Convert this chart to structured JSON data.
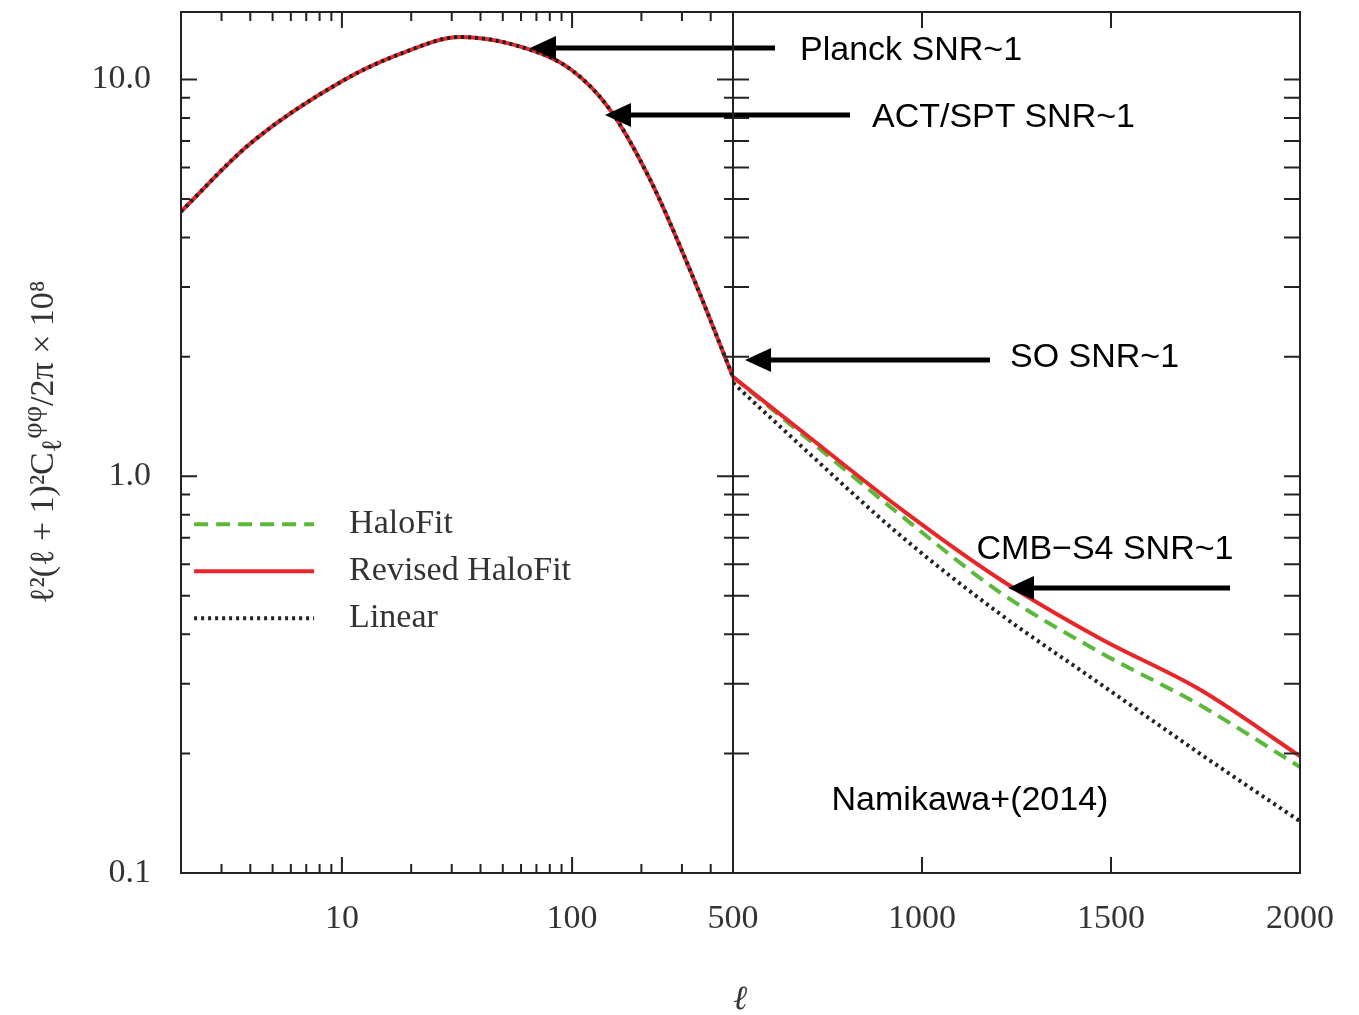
{
  "chart_data": [
    {
      "type": "line",
      "xlabel": "ℓ",
      "ylabel": "ℓ²(ℓ + 1)²C$_{ℓ}$$^{φφ}$/2π × 10⁸",
      "log": "xy",
      "grid": false,
      "legend": "left",
      "xlim": [
        2,
        500
      ],
      "xticks": [
        {
          "value": 3,
          "label": null
        },
        {
          "value": 4,
          "label": null
        },
        {
          "value": 5,
          "label": null
        },
        {
          "value": 6,
          "label": null
        },
        {
          "value": 7,
          "label": null
        },
        {
          "value": 8,
          "label": null
        },
        {
          "value": 9,
          "label": null
        },
        10,
        {
          "value": 20,
          "label": null
        },
        {
          "value": 30,
          "label": null
        },
        {
          "value": 40,
          "label": null
        },
        {
          "value": 50,
          "label": null
        },
        {
          "value": 60,
          "label": null
        },
        {
          "value": 70,
          "label": null
        },
        {
          "value": 80,
          "label": null
        },
        {
          "value": 90,
          "label": null
        },
        100,
        {
          "value": 200,
          "label": null
        },
        {
          "value": 300,
          "label": null
        },
        {
          "value": 400,
          "label": null
        }
      ],
      "ylim": [
        0.1,
        14.8
      ],
      "yticks": [
        0.1,
        {
          "value": 0.2,
          "label": null
        },
        {
          "value": 0.3,
          "label": null
        },
        {
          "value": 0.4,
          "label": null
        },
        {
          "value": 0.5,
          "label": null
        },
        {
          "value": 0.6,
          "label": null
        },
        {
          "value": 0.7,
          "label": null
        },
        {
          "value": 0.8,
          "label": null
        },
        {
          "value": 0.9,
          "label": null
        },
        {
          "value": 1,
          "label": "1.0"
        },
        {
          "value": 2,
          "label": null
        },
        {
          "value": 3,
          "label": null
        },
        {
          "value": 4,
          "label": null
        },
        {
          "value": 5,
          "label": null
        },
        {
          "value": 6,
          "label": null
        },
        {
          "value": 7,
          "label": null
        },
        {
          "value": 8,
          "label": null
        },
        {
          "value": 9,
          "label": null
        },
        {
          "value": 10,
          "label": "10.0"
        }
      ],
      "x": [
        2,
        4,
        10,
        17.9,
        32.7,
        59.6,
        98.8,
        146,
        218,
        326,
        500
      ],
      "series": [
        {
          "name": "HaloFit",
          "color": "#5cb83a",
          "line_style": "dashed",
          "values": [
            null,
            null,
            null,
            null,
            null,
            null,
            null,
            null,
            null,
            null,
            null
          ]
        },
        {
          "name": "Revised HaloFit",
          "color": "#e8262a",
          "line_style": "solid",
          "values": [
            4.65,
            6.9,
            9.9,
            11.6,
            12.8,
            12.1,
            10.6,
            8.4,
            5.6,
            3.3,
            1.78
          ]
        },
        {
          "name": "Linear",
          "color": "#222222",
          "line_style": "dotted",
          "values": [
            4.65,
            6.9,
            9.9,
            11.6,
            12.8,
            12.1,
            10.6,
            8.4,
            5.6,
            3.3,
            1.78
          ]
        }
      ],
      "annotations": [
        "Planck SNR~1",
        "ACT/SPT SNR~1"
      ]
    },
    {
      "type": "line",
      "log": "y",
      "grid": false,
      "tick_labels": "x",
      "xlim": [
        500,
        2000
      ],
      "xticks": [
        500,
        1000,
        1500,
        2000
      ],
      "ylim": [
        0.1,
        14.8
      ],
      "yticks": [
        0.1,
        0.2,
        0.3,
        0.4,
        0.5,
        0.6,
        0.7,
        0.8,
        0.9,
        1,
        2,
        3,
        4,
        5,
        6,
        7,
        8,
        9,
        10
      ],
      "x": [
        500,
        677,
        942,
        1206,
        1471,
        1735,
        2000
      ],
      "series": [
        {
          "color": "#5cb83a",
          "line_style": "dashed",
          "values": [
            1.78,
            1.29,
            0.8,
            0.51,
            0.36,
            0.265,
            0.185
          ]
        },
        {
          "color": "#e8262a",
          "line_style": "solid",
          "values": [
            1.78,
            1.31,
            0.83,
            0.55,
            0.39,
            0.29,
            0.197
          ]
        },
        {
          "color": "#222222",
          "line_style": "dotted",
          "values": [
            1.72,
            1.2,
            0.71,
            0.45,
            0.3,
            0.2,
            0.135
          ]
        }
      ],
      "annotations": [
        "SO SNR~1",
        "CMB−S4 SNR~1",
        "Namikawa+(2014)"
      ]
    }
  ]
}
